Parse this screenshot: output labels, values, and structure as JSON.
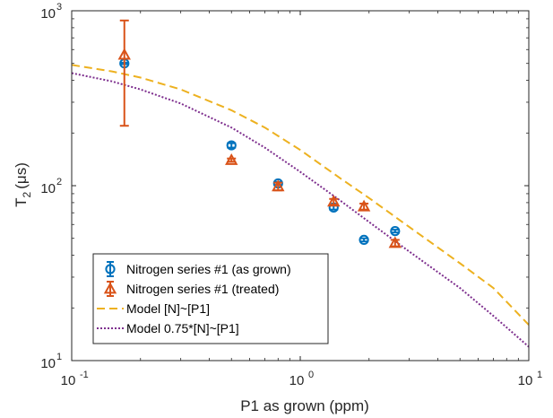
{
  "chart_data": {
    "type": "scatter",
    "xlabel": "P1 as grown (ppm)",
    "ylabel_main": "T",
    "ylabel_sub": "2",
    "ylabel_unit": "(μs)",
    "x_scale": "log",
    "y_scale": "log",
    "xlim": [
      0.1,
      10
    ],
    "ylim": [
      10,
      1000
    ],
    "x_ticks": [
      {
        "base": "10",
        "exp": "-1",
        "value": 0.1
      },
      {
        "base": "10",
        "exp": "0",
        "value": 1
      },
      {
        "base": "10",
        "exp": "1",
        "value": 10
      }
    ],
    "y_ticks": [
      {
        "base": "10",
        "exp": "1",
        "value": 10
      },
      {
        "base": "10",
        "exp": "2",
        "value": 100
      },
      {
        "base": "10",
        "exp": "3",
        "value": 1000
      }
    ],
    "grid": false,
    "legend_position": "bottom-left",
    "series": [
      {
        "name": "Nitrogen series #1 (as grown)",
        "kind": "errorbar",
        "marker": "circle",
        "color": "#0072BD",
        "points": [
          {
            "x": 0.17,
            "y": 500,
            "lo": 495,
            "hi": 505
          },
          {
            "x": 0.5,
            "y": 170,
            "lo": 165,
            "hi": 175
          },
          {
            "x": 0.8,
            "y": 103,
            "lo": 101,
            "hi": 105
          },
          {
            "x": 1.4,
            "y": 75,
            "lo": 73,
            "hi": 77
          },
          {
            "x": 1.9,
            "y": 49,
            "lo": 48,
            "hi": 50
          },
          {
            "x": 2.6,
            "y": 55,
            "lo": 54,
            "hi": 56
          }
        ]
      },
      {
        "name": "Nitrogen series #1 (treated)",
        "kind": "errorbar",
        "marker": "triangle",
        "color": "#D95319",
        "points": [
          {
            "x": 0.17,
            "y": 560,
            "lo": 220,
            "hi": 880
          },
          {
            "x": 0.5,
            "y": 140,
            "lo": 137,
            "hi": 143
          },
          {
            "x": 0.8,
            "y": 99,
            "lo": 94,
            "hi": 104
          },
          {
            "x": 1.4,
            "y": 81,
            "lo": 78,
            "hi": 84
          },
          {
            "x": 1.9,
            "y": 76,
            "lo": 73,
            "hi": 79
          },
          {
            "x": 2.6,
            "y": 47,
            "lo": 45,
            "hi": 49
          }
        ]
      },
      {
        "name": "Model [N]~[P1]",
        "kind": "line",
        "dash": "dashed",
        "color": "#EDB120",
        "x": [
          0.1,
          0.15,
          0.2,
          0.3,
          0.5,
          0.7,
          1,
          1.5,
          2,
          3,
          5,
          7,
          10
        ],
        "y": [
          490,
          450,
          415,
          355,
          270,
          215,
          160,
          110,
          85,
          58,
          36,
          26,
          16
        ]
      },
      {
        "name": "Model 0.75*[N]~[P1]",
        "kind": "line",
        "dash": "dotted",
        "color": "#7E2F8E",
        "x": [
          0.1,
          0.15,
          0.2,
          0.3,
          0.5,
          0.7,
          1,
          1.5,
          2,
          3,
          5,
          7,
          10
        ],
        "y": [
          440,
          395,
          355,
          295,
          215,
          165,
          120,
          82,
          62,
          42,
          26,
          18,
          12
        ]
      }
    ]
  }
}
